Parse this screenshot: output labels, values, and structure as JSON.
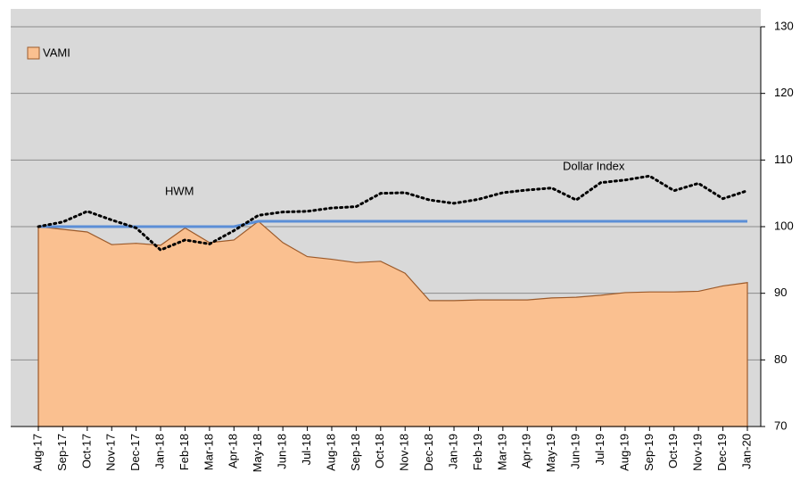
{
  "chart_data": {
    "type": "area",
    "categories": [
      "Aug-17",
      "Sep-17",
      "Oct-17",
      "Nov-17",
      "Dec-17",
      "Jan-18",
      "Feb-18",
      "Mar-18",
      "Apr-18",
      "May-18",
      "Jun-18",
      "Jul-18",
      "Aug-18",
      "Sep-18",
      "Oct-18",
      "Nov-18",
      "Dec-18",
      "Jan-19",
      "Feb-19",
      "Mar-19",
      "Apr-19",
      "May-19",
      "Jun-19",
      "Jul-19",
      "Aug-19",
      "Sep-19",
      "Oct-19",
      "Nov-19",
      "Dec-19",
      "Jan-20"
    ],
    "series": [
      {
        "name": "VAMI",
        "color": "#fac090",
        "values": [
          100,
          99.6,
          99.2,
          97.3,
          97.5,
          97.2,
          99.8,
          97.6,
          98.0,
          100.8,
          97.6,
          95.5,
          95.1,
          94.6,
          94.8,
          93.0,
          88.9,
          88.9,
          89.0,
          89.0,
          89.0,
          89.3,
          89.4,
          89.7,
          90.1,
          90.2,
          90.2,
          90.3,
          91.1,
          91.6
        ]
      },
      {
        "name": "HWM",
        "color": "#5b8ed6",
        "values": [
          100,
          100,
          100,
          100,
          100,
          100,
          100,
          100,
          100,
          100.8,
          100.8,
          100.8,
          100.8,
          100.8,
          100.8,
          100.8,
          100.8,
          100.8,
          100.8,
          100.8,
          100.8,
          100.8,
          100.8,
          100.8,
          100.8,
          100.8,
          100.8,
          100.8,
          100.8,
          100.8
        ]
      },
      {
        "name": "Dollar Index",
        "color": "#000000",
        "values": [
          100.0,
          100.7,
          102.3,
          101.0,
          99.8,
          96.5,
          98.0,
          97.4,
          99.4,
          101.7,
          102.2,
          102.3,
          102.8,
          103.0,
          105.0,
          105.1,
          104.0,
          103.5,
          104.1,
          105.1,
          105.5,
          105.8,
          104.0,
          106.6,
          107.0,
          107.6,
          105.4,
          106.5,
          104.2,
          105.4
        ]
      }
    ],
    "ylim": [
      70,
      130
    ],
    "yticks": [
      70,
      80,
      90,
      100,
      110,
      120,
      130
    ],
    "grid": true
  }
}
